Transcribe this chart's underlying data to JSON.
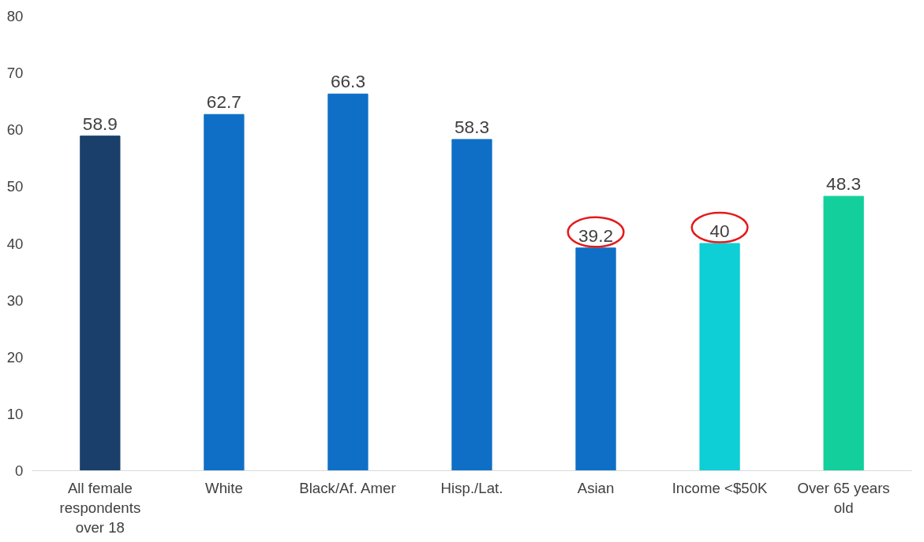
{
  "chart_data": {
    "type": "bar",
    "categories": [
      "All female respondents over 18",
      "White",
      "Black/Af. Amer",
      "Hisp./Lat.",
      "Asian",
      "Income <$50K",
      "Over 65 years old"
    ],
    "values": [
      58.9,
      62.7,
      66.3,
      58.3,
      39.2,
      40,
      48.3
    ],
    "colors": [
      "#1a3f6b",
      "#0f6fc6",
      "#0f6fc6",
      "#0f6fc6",
      "#0f6fc6",
      "#0fcfd6",
      "#12cf9b"
    ],
    "ylim": [
      0,
      80
    ],
    "yticks": [
      0,
      10,
      20,
      30,
      40,
      50,
      60,
      70,
      80
    ],
    "data_labels": true,
    "grid": false
  }
}
